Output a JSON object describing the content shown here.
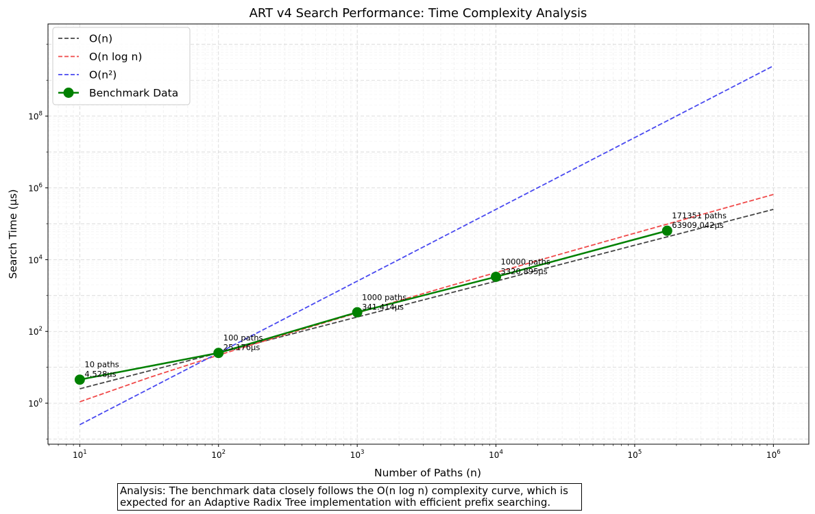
{
  "chart_data": {
    "type": "line",
    "title": "ART v4 Search Performance: Time Complexity Analysis",
    "xlabel": "Number of Paths (n)",
    "ylabel": "Search Time (µs)",
    "x_scale": "log",
    "y_scale": "log",
    "xlim": [
      5.9,
      1800000
    ],
    "ylim": [
      0.072,
      37000000000
    ],
    "x_ticks": [
      {
        "value": 10,
        "base": "10",
        "exp": "1"
      },
      {
        "value": 100,
        "base": "10",
        "exp": "2"
      },
      {
        "value": 1000,
        "base": "10",
        "exp": "3"
      },
      {
        "value": 10000,
        "base": "10",
        "exp": "4"
      },
      {
        "value": 100000,
        "base": "10",
        "exp": "5"
      },
      {
        "value": 1000000,
        "base": "10",
        "exp": "6"
      }
    ],
    "y_ticks": [
      {
        "value": 1,
        "base": "10",
        "exp": "0"
      },
      {
        "value": 100,
        "base": "10",
        "exp": "2"
      },
      {
        "value": 10000,
        "base": "10",
        "exp": "4"
      },
      {
        "value": 1000000,
        "base": "10",
        "exp": "6"
      },
      {
        "value": 100000000,
        "base": "10",
        "exp": "8"
      }
    ],
    "grid": true,
    "legend_position": "top-left",
    "series": [
      {
        "name": "O(n)",
        "style": "dashed",
        "color": "#444444",
        "x": [
          10,
          1000000
        ],
        "y": [
          2.517,
          251700
        ]
      },
      {
        "name": "O(n log n)",
        "style": "dashed",
        "color": "#f04848",
        "x": [
          10,
          31.62,
          100,
          316.2,
          1000,
          3162,
          10000,
          31620,
          100000,
          316200,
          1000000
        ],
        "y": [
          1.093,
          5.18,
          21.86,
          86.4,
          327.9,
          1210,
          4372,
          15580,
          54650,
          189100,
          655800
        ]
      },
      {
        "name": "O(n²)",
        "style": "dashed",
        "color": "#4848f0",
        "x": [
          10,
          1000000
        ],
        "y": [
          0.2518,
          2518000000
        ]
      },
      {
        "name": "Benchmark Data",
        "style": "solid-marker",
        "color": "#008000",
        "x": [
          10,
          100,
          1000,
          10000,
          171351
        ],
        "y": [
          4.528,
          25.176,
          341.414,
          3320.895,
          63909.042
        ]
      }
    ],
    "annotations": [
      {
        "x": 10,
        "y": 4.528,
        "line1": "10 paths",
        "line2": "4.528µs"
      },
      {
        "x": 100,
        "y": 25.176,
        "line1": "100 paths",
        "line2": "25.176µs"
      },
      {
        "x": 1000,
        "y": 341.414,
        "line1": "1000 paths",
        "line2": "341.414µs"
      },
      {
        "x": 10000,
        "y": 3320.895,
        "line1": "10000 paths",
        "line2": "3320.895µs"
      },
      {
        "x": 171351,
        "y": 63909.042,
        "line1": "171351 paths",
        "line2": "63909.042µs"
      }
    ]
  },
  "analysis_note": {
    "line1": "Analysis: The benchmark data closely follows the O(n log n) complexity curve, which is",
    "line2": "expected for an Adaptive Radix Tree implementation with efficient prefix searching."
  }
}
